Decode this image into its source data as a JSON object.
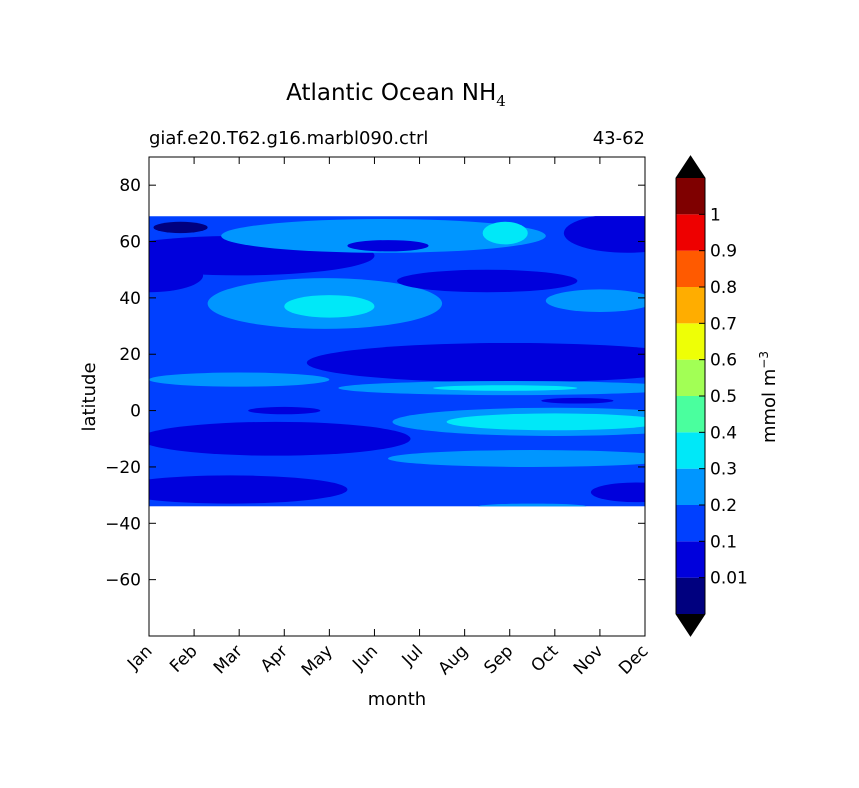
{
  "chart_data": {
    "type": "heatmap",
    "title": "Atlantic Ocean NH",
    "title_subscript": "4",
    "subtitle_left": "giaf.e20.T62.g16.marbl090.ctrl",
    "subtitle_right": "43-62",
    "xlabel": "month",
    "ylabel": "latitude",
    "x_ticks": [
      "Jan",
      "Feb",
      "Mar",
      "Apr",
      "May",
      "Jun",
      "Jul",
      "Aug",
      "Sep",
      "Oct",
      "Nov",
      "Dec"
    ],
    "y_ticks": [
      80,
      60,
      40,
      20,
      0,
      -20,
      -40,
      -60
    ],
    "y_tick_labels": [
      "80",
      "60",
      "40",
      "20",
      "0",
      "−20",
      "−40",
      "−60"
    ],
    "ylim": [
      -80,
      90
    ],
    "data_lat_range": [
      -34,
      69
    ],
    "colorbar": {
      "label": "mmol m",
      "label_superscript": "−3",
      "levels": [
        0,
        0.01,
        0.1,
        0.2,
        0.3,
        0.4,
        0.5,
        0.6,
        0.7,
        0.8,
        0.9,
        1.0,
        1.1
      ],
      "tick_values": [
        0.01,
        0.1,
        0.2,
        0.3,
        0.4,
        0.5,
        0.6,
        0.7,
        0.8,
        0.9,
        1.0
      ],
      "tick_labels": [
        "0.01",
        "0.1",
        "0.2",
        "0.3",
        "0.4",
        "0.5",
        "0.6",
        "0.7",
        "0.8",
        "0.9",
        "1"
      ],
      "colors": [
        "#00007f",
        "#0000dc",
        "#0040ff",
        "#0096ff",
        "#00e8f8",
        "#4aff9e",
        "#a2ff55",
        "#eeff06",
        "#ffad00",
        "#ff5a00",
        "#ee0000",
        "#7f0000"
      ],
      "under_color": "#000000",
      "over_color": "#000000",
      "extend": "both"
    },
    "background_level_index": 2,
    "regions": [
      {
        "level": 1,
        "cx": 2.0,
        "cy": 55,
        "rx": 3.0,
        "ry": 7
      },
      {
        "level": 1,
        "cx": 0.0,
        "cy": 48,
        "rx": 1.2,
        "ry": 6
      },
      {
        "level": 0,
        "cx": 0.7,
        "cy": 65,
        "rx": 0.6,
        "ry": 2
      },
      {
        "level": 1,
        "cx": 10.6,
        "cy": 63,
        "rx": 1.4,
        "ry": 7
      },
      {
        "level": 3,
        "cx": 5.2,
        "cy": 62,
        "rx": 3.6,
        "ry": 6
      },
      {
        "level": 4,
        "cx": 7.9,
        "cy": 63,
        "rx": 0.5,
        "ry": 4
      },
      {
        "level": 1,
        "cx": 5.3,
        "cy": 58.5,
        "rx": 0.9,
        "ry": 2
      },
      {
        "level": 3,
        "cx": 3.9,
        "cy": 38,
        "rx": 2.6,
        "ry": 9
      },
      {
        "level": 4,
        "cx": 4.0,
        "cy": 37,
        "rx": 1.0,
        "ry": 4
      },
      {
        "level": 1,
        "cx": 7.5,
        "cy": 46,
        "rx": 2.0,
        "ry": 4
      },
      {
        "level": 3,
        "cx": 10.0,
        "cy": 39,
        "rx": 1.2,
        "ry": 4
      },
      {
        "level": 1,
        "cx": 8.0,
        "cy": 17,
        "rx": 4.5,
        "ry": 7
      },
      {
        "level": 3,
        "cx": 2.0,
        "cy": 11,
        "rx": 2.0,
        "ry": 2.5
      },
      {
        "level": 3,
        "cx": 8.0,
        "cy": 8,
        "rx": 3.8,
        "ry": 2.5
      },
      {
        "level": 4,
        "cx": 7.9,
        "cy": 8,
        "rx": 1.6,
        "ry": 1
      },
      {
        "level": 3,
        "cx": 9.0,
        "cy": -4,
        "rx": 3.6,
        "ry": 5
      },
      {
        "level": 4,
        "cx": 9.0,
        "cy": -4,
        "rx": 2.4,
        "ry": 3
      },
      {
        "level": 1,
        "cx": 3.0,
        "cy": 0,
        "rx": 0.8,
        "ry": 1.3
      },
      {
        "level": 1,
        "cx": 9.5,
        "cy": 3.5,
        "rx": 0.8,
        "ry": 1
      },
      {
        "level": 1,
        "cx": 2.8,
        "cy": -10,
        "rx": 3.0,
        "ry": 6
      },
      {
        "level": 3,
        "cx": 8.5,
        "cy": -17,
        "rx": 3.2,
        "ry": 3
      },
      {
        "level": 1,
        "cx": 1.8,
        "cy": -28,
        "rx": 2.6,
        "ry": 5
      },
      {
        "level": 1,
        "cx": 10.8,
        "cy": -29,
        "rx": 1.0,
        "ry": 3.5
      },
      {
        "level": 3,
        "cx": 8.5,
        "cy": -34,
        "rx": 1.2,
        "ry": 1
      }
    ]
  }
}
